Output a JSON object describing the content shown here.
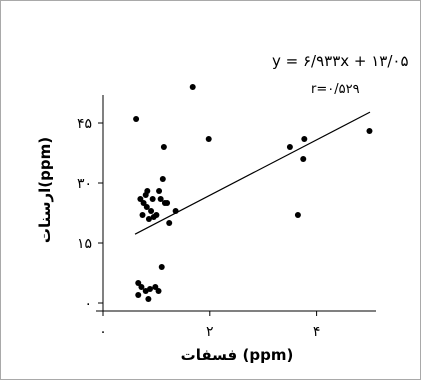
{
  "chart_data": {
    "type": "scatter",
    "title": "",
    "xlabel": "فسفات (ppm)",
    "ylabel": "ارسنات(ppm)",
    "xlim": [
      0,
      5
    ],
    "ylim": [
      0,
      52
    ],
    "x_ticks": [
      {
        "value": 0,
        "label": "۰"
      },
      {
        "value": 2,
        "label": "۲"
      },
      {
        "value": 4,
        "label": "۴"
      }
    ],
    "y_ticks": [
      {
        "value": 0,
        "label": "۰"
      },
      {
        "value": 15,
        "label": "۱۵"
      },
      {
        "value": 30,
        "label": "۳۰"
      },
      {
        "value": 45,
        "label": "۴۵"
      }
    ],
    "trendline": {
      "equation_label": "y = ۶/۹۳۳x + ۱۳/۰۵",
      "r_label": "r=۰/۵۲۹",
      "slope": 6.933,
      "intercept": 13.05,
      "x_range": [
        0.6,
        5.0
      ]
    },
    "points": [
      {
        "x": 0.62,
        "y": 46
      },
      {
        "x": 0.66,
        "y": 2
      },
      {
        "x": 0.66,
        "y": 5
      },
      {
        "x": 0.7,
        "y": 26
      },
      {
        "x": 0.72,
        "y": 4
      },
      {
        "x": 0.74,
        "y": 22
      },
      {
        "x": 0.76,
        "y": 25
      },
      {
        "x": 0.8,
        "y": 3
      },
      {
        "x": 0.8,
        "y": 27
      },
      {
        "x": 0.82,
        "y": 24
      },
      {
        "x": 0.83,
        "y": 28
      },
      {
        "x": 0.85,
        "y": 1
      },
      {
        "x": 0.86,
        "y": 21
      },
      {
        "x": 0.88,
        "y": 3.5
      },
      {
        "x": 0.9,
        "y": 23
      },
      {
        "x": 0.93,
        "y": 26
      },
      {
        "x": 0.95,
        "y": 21.5
      },
      {
        "x": 0.98,
        "y": 4
      },
      {
        "x": 1.0,
        "y": 22
      },
      {
        "x": 1.04,
        "y": 3
      },
      {
        "x": 1.05,
        "y": 28
      },
      {
        "x": 1.08,
        "y": 26
      },
      {
        "x": 1.1,
        "y": 9
      },
      {
        "x": 1.12,
        "y": 31
      },
      {
        "x": 1.14,
        "y": 39
      },
      {
        "x": 1.16,
        "y": 25
      },
      {
        "x": 1.2,
        "y": 25
      },
      {
        "x": 1.24,
        "y": 20
      },
      {
        "x": 1.36,
        "y": 23
      },
      {
        "x": 1.68,
        "y": 54
      },
      {
        "x": 1.98,
        "y": 41
      },
      {
        "x": 3.5,
        "y": 39
      },
      {
        "x": 3.65,
        "y": 22
      },
      {
        "x": 3.75,
        "y": 36
      },
      {
        "x": 3.77,
        "y": 41
      },
      {
        "x": 4.99,
        "y": 43
      }
    ]
  },
  "colors": {
    "frame": "#a9a9a9",
    "axis": "#000000",
    "points": "#000000",
    "trendline": "#000000"
  }
}
